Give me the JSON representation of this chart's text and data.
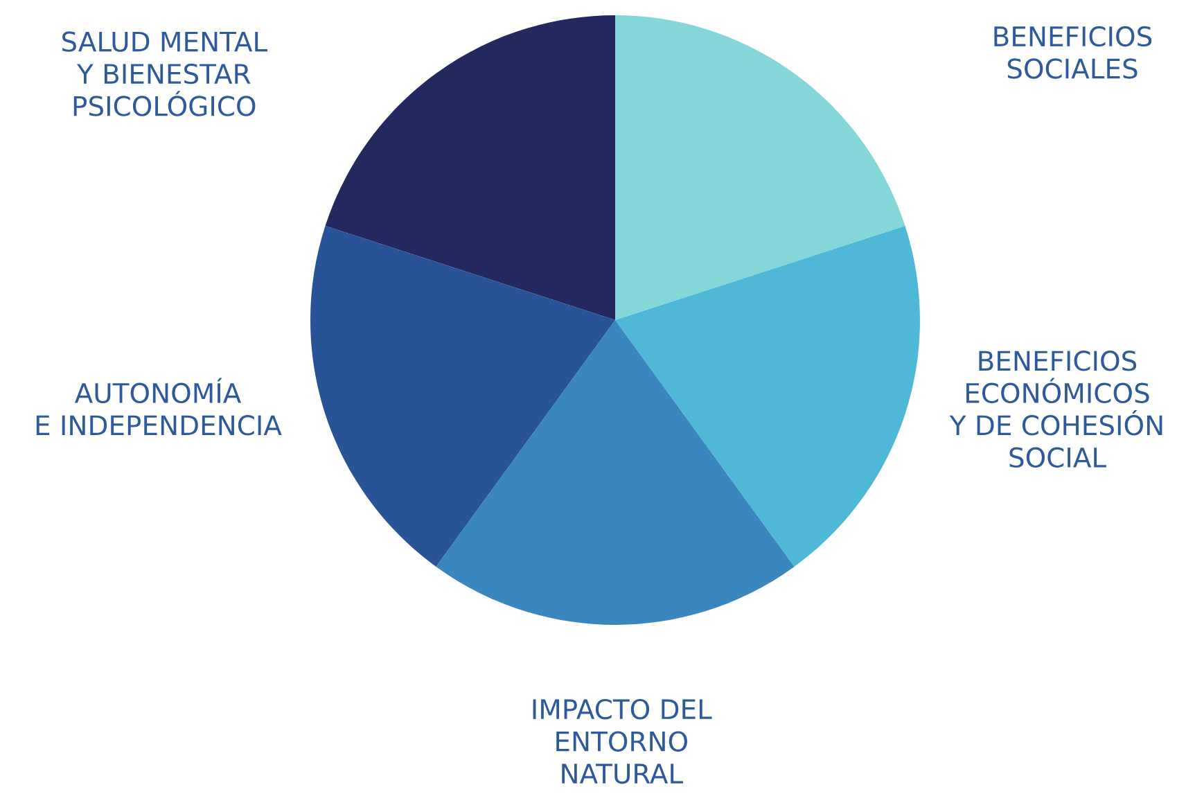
{
  "chart_data": {
    "type": "pie",
    "categories": [
      "BENEFICIOS\nSOCIALES",
      "BENEFICIOS\nECONÓMICOS\nY DE COHESIÓN\nSOCIAL",
      "IMPACTO DEL\nENTORNO\nNATURAL",
      "AUTONOMÍA\nE INDEPENDENCIA",
      "SALUD MENTAL\nY BIENESTAR\nPSICOLÓGICO"
    ],
    "values": [
      20,
      20,
      20,
      20,
      20
    ],
    "colors": [
      "#85d6d8",
      "#4fb8d6",
      "#3a86be",
      "#285497",
      "#23295e"
    ],
    "legend": false
  }
}
